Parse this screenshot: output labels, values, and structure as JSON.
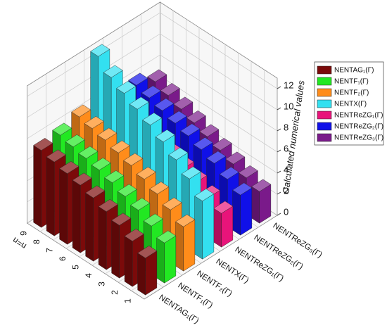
{
  "chart_data": {
    "type": "bar3d",
    "xlabel": "n=n",
    "zlabel": "Calculated numerical values",
    "categories": [
      "1",
      "2",
      "3",
      "4",
      "5",
      "6",
      "7",
      "8",
      "9"
    ],
    "series": [
      {
        "name": "NENTAG₁(Γ)",
        "color": "#7b0a0a",
        "values": [
          3.5,
          4.3,
          5.0,
          5.5,
          6.0,
          6.4,
          6.7,
          7.0,
          7.3
        ]
      },
      {
        "name": "NENTF₁(Γ)",
        "color": "#22e822",
        "values": [
          3.8,
          4.6,
          5.3,
          5.8,
          6.3,
          6.7,
          7.0,
          7.3,
          7.6
        ]
      },
      {
        "name": "NENTF₂(Γ)",
        "color": "#ff8c1a",
        "values": [
          4.2,
          5.0,
          5.7,
          6.3,
          6.8,
          7.2,
          7.6,
          7.9,
          8.2
        ]
      },
      {
        "name": "NENTX(Γ)",
        "color": "#33e0f0",
        "values": [
          5.5,
          6.8,
          7.8,
          8.7,
          9.5,
          10.2,
          10.9,
          11.6,
          12.8
        ]
      },
      {
        "name": "NENTReZG₁(Γ)",
        "color": "#e8147a",
        "values": [
          3.2,
          3.9,
          4.5,
          5.0,
          5.5,
          5.9,
          6.2,
          6.5,
          6.8
        ]
      },
      {
        "name": "NENTReZG₂(Γ)",
        "color": "#1010e8",
        "values": [
          3.8,
          4.5,
          5.2,
          5.7,
          6.2,
          6.6,
          7.0,
          7.4,
          7.8
        ]
      },
      {
        "name": "NENTReZG₃(Γ)",
        "color": "#7a1a8a",
        "values": [
          3.0,
          3.5,
          4.0,
          4.5,
          5.0,
          5.5,
          6.0,
          6.5,
          7.0
        ]
      }
    ],
    "ylim": [
      0,
      13
    ],
    "yticks": [
      0,
      2,
      4,
      6,
      8,
      10,
      12
    ],
    "grid": true,
    "legend": "right"
  }
}
